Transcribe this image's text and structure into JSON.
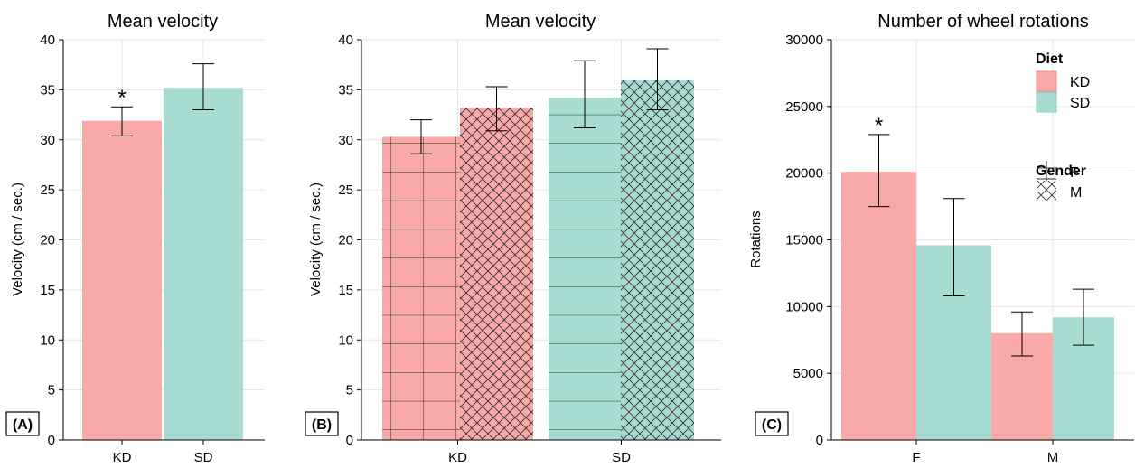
{
  "chart_data": [
    {
      "type": "bar",
      "panel": "(A)",
      "title": "Mean velocity",
      "ylabel": "Velocity (cm / sec.)",
      "ylim": [
        0,
        40
      ],
      "yticks": [
        0,
        5,
        10,
        15,
        20,
        25,
        30,
        35,
        40
      ],
      "categories": [
        "KD",
        "SD"
      ],
      "values": [
        31.9,
        35.2
      ],
      "error_low": [
        30.4,
        33.0
      ],
      "error_high": [
        33.3,
        37.6
      ],
      "colors": [
        "#f9a9a8",
        "#a8dcd2"
      ],
      "annotations": [
        {
          "category": "KD",
          "text": "*"
        }
      ],
      "grid": true
    },
    {
      "type": "bar",
      "panel": "(B)",
      "title": "Mean velocity",
      "ylabel": "Velocity (cm / sec.)",
      "ylim": [
        0,
        40
      ],
      "yticks": [
        0,
        5,
        10,
        15,
        20,
        25,
        30,
        35,
        40
      ],
      "categories": [
        "KD",
        "SD"
      ],
      "series": [
        {
          "name": "F",
          "pattern": "grid",
          "values": [
            30.3,
            34.2
          ],
          "error_low": [
            28.6,
            31.2
          ],
          "error_high": [
            32.0,
            37.9
          ]
        },
        {
          "name": "M",
          "pattern": "crosshatch",
          "values": [
            33.2,
            36.0
          ],
          "error_low": [
            30.9,
            33.0
          ],
          "error_high": [
            35.3,
            39.1
          ]
        }
      ],
      "colors": [
        "#f9a9a8",
        "#a8dcd2"
      ],
      "grid": true
    },
    {
      "type": "bar",
      "panel": "(C)",
      "title": "Number of wheel rotations",
      "ylabel": "Rotations",
      "ylim": [
        0,
        30000
      ],
      "yticks": [
        0,
        5000,
        10000,
        15000,
        20000,
        25000,
        30000
      ],
      "categories": [
        "F",
        "M"
      ],
      "series": [
        {
          "name": "KD",
          "values": [
            20100,
            8000
          ],
          "error_low": [
            17500,
            6300
          ],
          "error_high": [
            22900,
            9600
          ]
        },
        {
          "name": "SD",
          "values": [
            14600,
            9200
          ],
          "error_low": [
            10800,
            7100
          ],
          "error_high": [
            18100,
            11300
          ]
        }
      ],
      "colors": [
        "#f9a9a8",
        "#a8dcd2"
      ],
      "annotations": [
        {
          "category": "F",
          "series": "KD",
          "text": "*"
        }
      ],
      "legend": {
        "position": "top-right",
        "groups": [
          {
            "title": "Diet",
            "entries": [
              {
                "label": "KD",
                "color": "#f9a9a8"
              },
              {
                "label": "SD",
                "color": "#a8dcd2"
              }
            ]
          },
          {
            "title": "Gender",
            "entries": [
              {
                "label": "F",
                "pattern": "grid"
              },
              {
                "label": "M",
                "pattern": "crosshatch"
              }
            ]
          }
        ]
      },
      "grid": true
    }
  ]
}
